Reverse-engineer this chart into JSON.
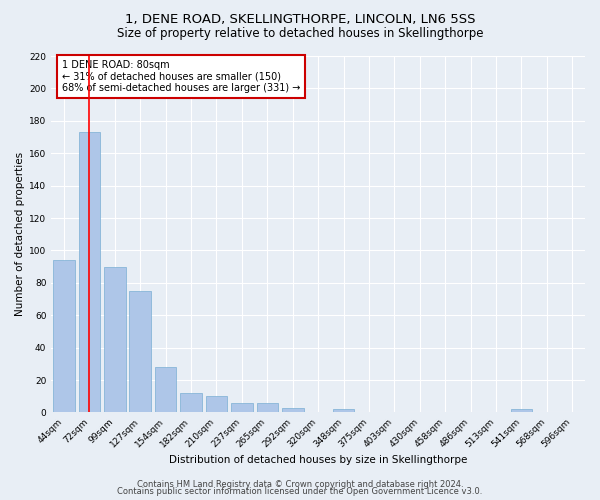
{
  "title": "1, DENE ROAD, SKELLINGTHORPE, LINCOLN, LN6 5SS",
  "subtitle": "Size of property relative to detached houses in Skellingthorpe",
  "xlabel": "Distribution of detached houses by size in Skellingthorpe",
  "ylabel": "Number of detached properties",
  "categories": [
    "44sqm",
    "72sqm",
    "99sqm",
    "127sqm",
    "154sqm",
    "182sqm",
    "210sqm",
    "237sqm",
    "265sqm",
    "292sqm",
    "320sqm",
    "348sqm",
    "375sqm",
    "403sqm",
    "430sqm",
    "458sqm",
    "486sqm",
    "513sqm",
    "541sqm",
    "568sqm",
    "596sqm"
  ],
  "values": [
    94,
    173,
    90,
    75,
    28,
    12,
    10,
    6,
    6,
    3,
    0,
    2,
    0,
    0,
    0,
    0,
    0,
    0,
    2,
    0,
    0
  ],
  "bar_color": "#aec6e8",
  "bar_edge_color": "#7aafd4",
  "background_color": "#e8eef5",
  "grid_color": "#ffffff",
  "red_line_x": 1,
  "annotation_text": "1 DENE ROAD: 80sqm\n← 31% of detached houses are smaller (150)\n68% of semi-detached houses are larger (331) →",
  "annotation_box_color": "#ffffff",
  "annotation_box_edge_color": "#cc0000",
  "ylim": [
    0,
    220
  ],
  "yticks": [
    0,
    20,
    40,
    60,
    80,
    100,
    120,
    140,
    160,
    180,
    200,
    220
  ],
  "footer_line1": "Contains HM Land Registry data © Crown copyright and database right 2024.",
  "footer_line2": "Contains public sector information licensed under the Open Government Licence v3.0.",
  "title_fontsize": 9.5,
  "subtitle_fontsize": 8.5,
  "axis_label_fontsize": 7.5,
  "tick_fontsize": 6.5,
  "annotation_fontsize": 7,
  "footer_fontsize": 6
}
